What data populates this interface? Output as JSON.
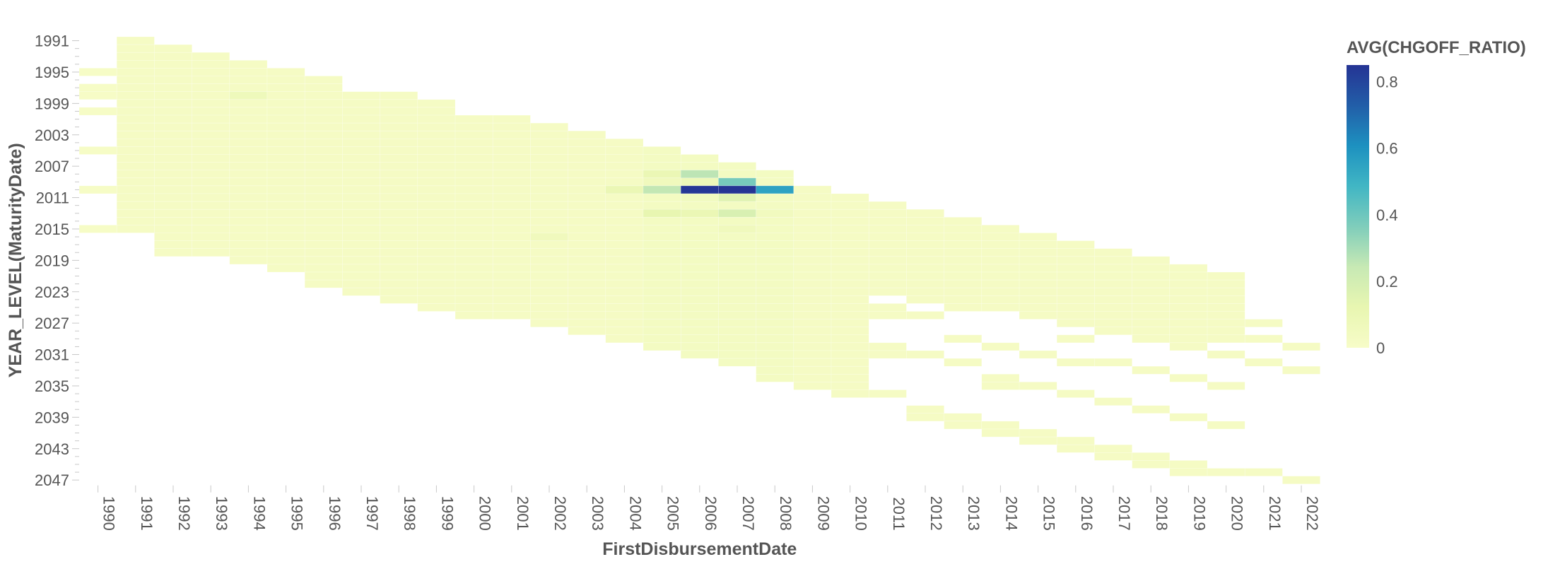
{
  "chart_data": {
    "type": "heatmap",
    "xlabel": "FirstDisbursementDate",
    "ylabel": "YEAR_LEVEL(MaturityDate)",
    "x_categories": [
      "1990",
      "1991",
      "1992",
      "1993",
      "1994",
      "1995",
      "1996",
      "1997",
      "1998",
      "1999",
      "2000",
      "2001",
      "2002",
      "2003",
      "2004",
      "2005",
      "2006",
      "2007",
      "2008",
      "2009",
      "2010",
      "2011",
      "2012",
      "2013",
      "2014",
      "2015",
      "2016",
      "2017",
      "2018",
      "2019",
      "2020",
      "2021",
      "2022"
    ],
    "y_range": [
      1991,
      2047
    ],
    "y_tick_labels": [
      "1991",
      "1995",
      "1999",
      "2003",
      "2007",
      "2011",
      "2015",
      "2019",
      "2023",
      "2027",
      "2031",
      "2035",
      "2039",
      "2043",
      "2047"
    ],
    "legend": {
      "title": "AVG(CHGOFF_RATIO)",
      "min": 0,
      "max": 0.85,
      "tick_labels": [
        "0.8",
        "0.6",
        "0.4",
        "0.2",
        "0"
      ],
      "tick_values": [
        0.8,
        0.6,
        0.4,
        0.2,
        0
      ],
      "colors": [
        "#f7fcc8",
        "#e8f6b1",
        "#c7e9b4",
        "#7fcdbb",
        "#41b6c4",
        "#1d91c0",
        "#225ea8",
        "#253494"
      ]
    },
    "grid": false,
    "ranges": [
      {
        "x": "1990",
        "y_values": [
          1995,
          1997,
          1998,
          2000,
          2005,
          2010,
          2015
        ],
        "value": 0.01
      },
      {
        "x": "1991",
        "y_from": 1991,
        "y_to": 2015,
        "value": 0.02
      },
      {
        "x": "1992",
        "y_from": 1992,
        "y_to": 2018,
        "value": 0.02
      },
      {
        "x": "1993",
        "y_from": 1993,
        "y_to": 2018,
        "value": 0.02
      },
      {
        "x": "1994",
        "y_from": 1994,
        "y_to": 2019,
        "value": 0.02
      },
      {
        "x": "1995",
        "y_from": 1995,
        "y_to": 2020,
        "value": 0.02
      },
      {
        "x": "1996",
        "y_from": 1996,
        "y_to": 2022,
        "value": 0.02
      },
      {
        "x": "1997",
        "y_from": 1998,
        "y_to": 2023,
        "value": 0.02
      },
      {
        "x": "1998",
        "y_from": 1998,
        "y_to": 2024,
        "value": 0.02
      },
      {
        "x": "1999",
        "y_from": 1999,
        "y_to": 2025,
        "value": 0.02
      },
      {
        "x": "2000",
        "y_from": 2001,
        "y_to": 2026,
        "value": 0.02
      },
      {
        "x": "2001",
        "y_from": 2001,
        "y_to": 2026,
        "value": 0.02
      },
      {
        "x": "2002",
        "y_from": 2002,
        "y_to": 2027,
        "value": 0.02
      },
      {
        "x": "2003",
        "y_from": 2003,
        "y_to": 2028,
        "value": 0.02
      },
      {
        "x": "2004",
        "y_from": 2004,
        "y_to": 2029,
        "value": 0.02
      },
      {
        "x": "2005",
        "y_from": 2005,
        "y_to": 2030,
        "value": 0.03
      },
      {
        "x": "2006",
        "y_from": 2006,
        "y_to": 2031,
        "value": 0.03
      },
      {
        "x": "2007",
        "y_from": 2007,
        "y_to": 2032,
        "value": 0.03
      },
      {
        "x": "2008",
        "y_from": 2008,
        "y_to": 2034,
        "value": 0.03
      },
      {
        "x": "2009",
        "y_from": 2010,
        "y_to": 2035,
        "value": 0.02
      },
      {
        "x": "2010",
        "y_from": 2011,
        "y_to": 2036,
        "value": 0.02
      },
      {
        "x": "2011",
        "y_from": 2012,
        "y_to": 2023,
        "value": 0.02
      },
      {
        "x": "2011",
        "y_values": [
          2025,
          2026,
          2030,
          2031,
          2036
        ],
        "value": 0.02
      },
      {
        "x": "2012",
        "y_from": 2013,
        "y_to": 2024,
        "value": 0.02
      },
      {
        "x": "2012",
        "y_values": [
          2026,
          2031,
          2038,
          2039
        ],
        "value": 0.02
      },
      {
        "x": "2013",
        "y_from": 2014,
        "y_to": 2025,
        "value": 0.02
      },
      {
        "x": "2013",
        "y_values": [
          2029,
          2032,
          2039,
          2040
        ],
        "value": 0.02
      },
      {
        "x": "2014",
        "y_from": 2015,
        "y_to": 2025,
        "value": 0.02
      },
      {
        "x": "2014",
        "y_values": [
          2030,
          2034,
          2035,
          2040,
          2041
        ],
        "value": 0.02
      },
      {
        "x": "2015",
        "y_from": 2016,
        "y_to": 2026,
        "value": 0.02
      },
      {
        "x": "2015",
        "y_values": [
          2031,
          2035,
          2041,
          2042
        ],
        "value": 0.02
      },
      {
        "x": "2016",
        "y_from": 2017,
        "y_to": 2027,
        "value": 0.02
      },
      {
        "x": "2016",
        "y_values": [
          2029,
          2032,
          2036,
          2042,
          2043
        ],
        "value": 0.02
      },
      {
        "x": "2017",
        "y_from": 2018,
        "y_to": 2028,
        "value": 0.02
      },
      {
        "x": "2017",
        "y_values": [
          2032,
          2037,
          2043,
          2044
        ],
        "value": 0.02
      },
      {
        "x": "2018",
        "y_from": 2019,
        "y_to": 2029,
        "value": 0.02
      },
      {
        "x": "2018",
        "y_values": [
          2033,
          2038,
          2044,
          2045
        ],
        "value": 0.02
      },
      {
        "x": "2019",
        "y_from": 2020,
        "y_to": 2030,
        "value": 0.02
      },
      {
        "x": "2019",
        "y_values": [
          2034,
          2039,
          2045,
          2046
        ],
        "value": 0.02
      },
      {
        "x": "2020",
        "y_from": 2021,
        "y_to": 2029,
        "value": 0.02
      },
      {
        "x": "2020",
        "y_values": [
          2031,
          2035,
          2040,
          2046
        ],
        "value": 0.02
      },
      {
        "x": "2021",
        "y_values": [
          2027,
          2029,
          2032,
          2046
        ],
        "value": 0.02
      },
      {
        "x": "2022",
        "y_values": [
          2030,
          2033,
          2047
        ],
        "value": 0.02
      }
    ],
    "cells": [
      {
        "x": "2004",
        "y": 2010,
        "value": 0.1
      },
      {
        "x": "2005",
        "y": 2008,
        "value": 0.1
      },
      {
        "x": "2005",
        "y": 2009,
        "value": 0.06
      },
      {
        "x": "2005",
        "y": 2010,
        "value": 0.25
      },
      {
        "x": "2005",
        "y": 2013,
        "value": 0.12
      },
      {
        "x": "2006",
        "y": 2008,
        "value": 0.26
      },
      {
        "x": "2006",
        "y": 2009,
        "value": 0.08
      },
      {
        "x": "2006",
        "y": 2010,
        "value": 0.84
      },
      {
        "x": "2006",
        "y": 2011,
        "value": 0.05
      },
      {
        "x": "2006",
        "y": 2013,
        "value": 0.1
      },
      {
        "x": "2007",
        "y": 2009,
        "value": 0.38
      },
      {
        "x": "2007",
        "y": 2010,
        "value": 0.85
      },
      {
        "x": "2007",
        "y": 2011,
        "value": 0.15
      },
      {
        "x": "2007",
        "y": 2013,
        "value": 0.18
      },
      {
        "x": "2007",
        "y": 2015,
        "value": 0.06
      },
      {
        "x": "2008",
        "y": 2010,
        "value": 0.55
      },
      {
        "x": "2008",
        "y": 2013,
        "value": 0.05
      },
      {
        "x": "1994",
        "y": 1998,
        "value": 0.07
      },
      {
        "x": "2002",
        "y": 2016,
        "value": 0.06
      }
    ]
  }
}
